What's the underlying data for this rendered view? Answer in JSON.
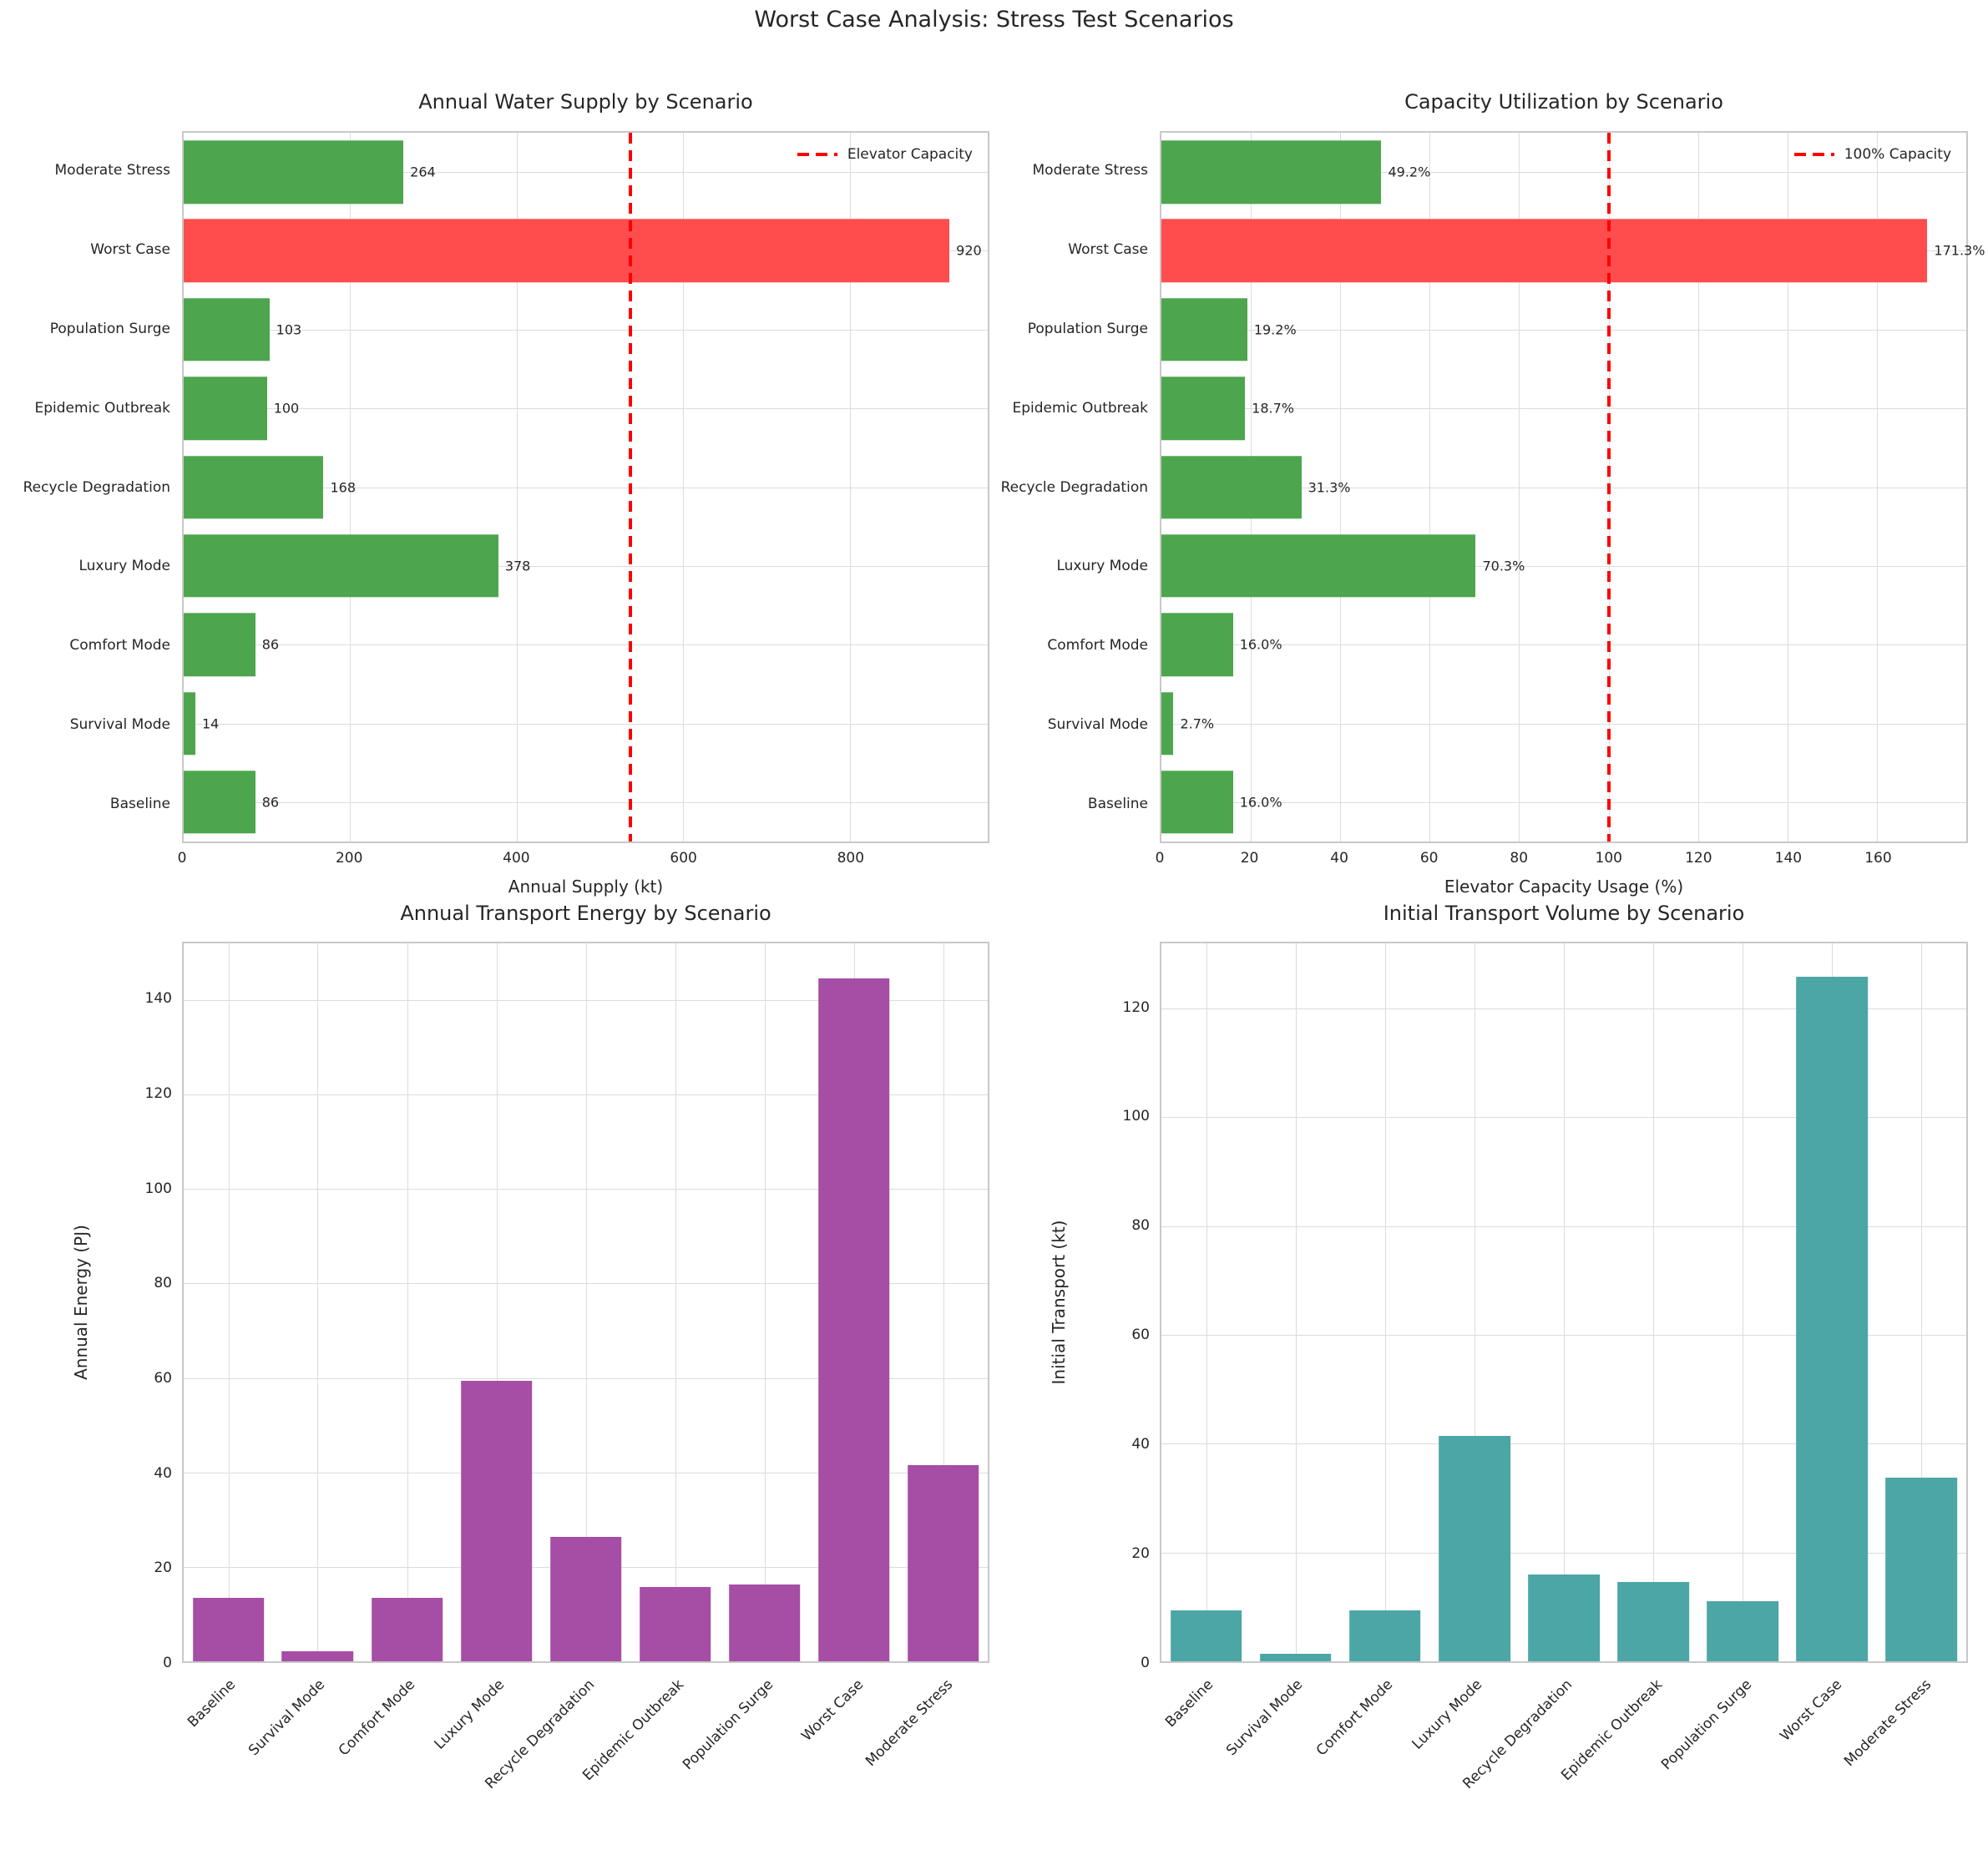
{
  "figure_title": "Worst Case Analysis: Stress Test Scenarios",
  "colors": {
    "green": "#4da64d",
    "red": "#ff4d4d",
    "purple": "#a64da6",
    "teal": "#4da6a6",
    "threshold_red": "#ff0000",
    "grid": "#dcdcdc",
    "spine": "#c8c8c8",
    "text": "#262626"
  },
  "chart_data": [
    {
      "id": "annual-water-supply",
      "type": "barh",
      "title": "Annual Water Supply by Scenario",
      "xlabel": "Annual Supply (kt)",
      "legend_label": "Elevator Capacity",
      "categories": [
        "Baseline",
        "Survival Mode",
        "Comfort Mode",
        "Luxury Mode",
        "Recycle Degradation",
        "Epidemic Outbreak",
        "Population Surge",
        "Worst Case",
        "Moderate Stress"
      ],
      "values": [
        86,
        14,
        86,
        378,
        168,
        100,
        103,
        920,
        264
      ],
      "value_labels": [
        "86",
        "14",
        "86",
        "378",
        "168",
        "100",
        "103",
        "920",
        "264"
      ],
      "bar_color": "#4da64d",
      "highlight": {
        "index": 7,
        "color": "#ff4d4d"
      },
      "xlim": [
        0,
        966
      ],
      "xticks": [
        0,
        200,
        400,
        600,
        800
      ],
      "vline": {
        "x": 537,
        "color": "#ff0000",
        "style": "dashed"
      },
      "grid": true,
      "legend_position": "upper right"
    },
    {
      "id": "capacity-utilization",
      "type": "barh",
      "title": "Capacity Utilization by Scenario",
      "xlabel": "Elevator Capacity Usage (%)",
      "legend_label": "100% Capacity",
      "categories": [
        "Baseline",
        "Survival Mode",
        "Comfort Mode",
        "Luxury Mode",
        "Recycle Degradation",
        "Epidemic Outbreak",
        "Population Surge",
        "Worst Case",
        "Moderate Stress"
      ],
      "values": [
        16.0,
        2.7,
        16.0,
        70.3,
        31.3,
        18.7,
        19.2,
        171.3,
        49.2
      ],
      "value_labels": [
        "16.0%",
        "2.7%",
        "16.0%",
        "70.3%",
        "31.3%",
        "18.7%",
        "19.2%",
        "171.3%",
        "49.2%"
      ],
      "bar_color": "#4da64d",
      "highlight": {
        "index": 7,
        "color": "#ff4d4d"
      },
      "xlim": [
        0,
        180
      ],
      "xticks": [
        0,
        20,
        40,
        60,
        80,
        100,
        120,
        140,
        160
      ],
      "vline": {
        "x": 100,
        "color": "#ff0000",
        "style": "dashed"
      },
      "grid": true,
      "legend_position": "upper right"
    },
    {
      "id": "annual-transport-energy",
      "type": "bar",
      "title": "Annual Transport Energy by Scenario",
      "ylabel": "Annual Energy (PJ)",
      "categories": [
        "Baseline",
        "Survival Mode",
        "Comfort Mode",
        "Luxury Mode",
        "Recycle Degradation",
        "Epidemic Outbreak",
        "Population Surge",
        "Worst Case",
        "Moderate Stress"
      ],
      "values": [
        13.5,
        2.2,
        13.5,
        59.4,
        26.4,
        15.7,
        16.2,
        144.5,
        41.5
      ],
      "bar_color": "#a64da6",
      "ylim": [
        0,
        152
      ],
      "yticks": [
        0,
        20,
        40,
        60,
        80,
        100,
        120,
        140
      ],
      "grid": true,
      "xtick_rotation": 45
    },
    {
      "id": "initial-transport-volume",
      "type": "bar",
      "title": "Initial Transport Volume by Scenario",
      "ylabel": "Initial Transport (kt)",
      "categories": [
        "Baseline",
        "Survival Mode",
        "Comfort Mode",
        "Luxury Mode",
        "Recycle Degradation",
        "Epidemic Outbreak",
        "Population Surge",
        "Worst Case",
        "Moderate Stress"
      ],
      "values": [
        9.3,
        1.4,
        9.3,
        41.4,
        15.9,
        14.6,
        11.0,
        125.9,
        33.8
      ],
      "bar_color": "#4da6a6",
      "ylim": [
        0,
        132
      ],
      "yticks": [
        0,
        20,
        40,
        60,
        80,
        100,
        120
      ],
      "grid": true,
      "xtick_rotation": 45
    }
  ]
}
